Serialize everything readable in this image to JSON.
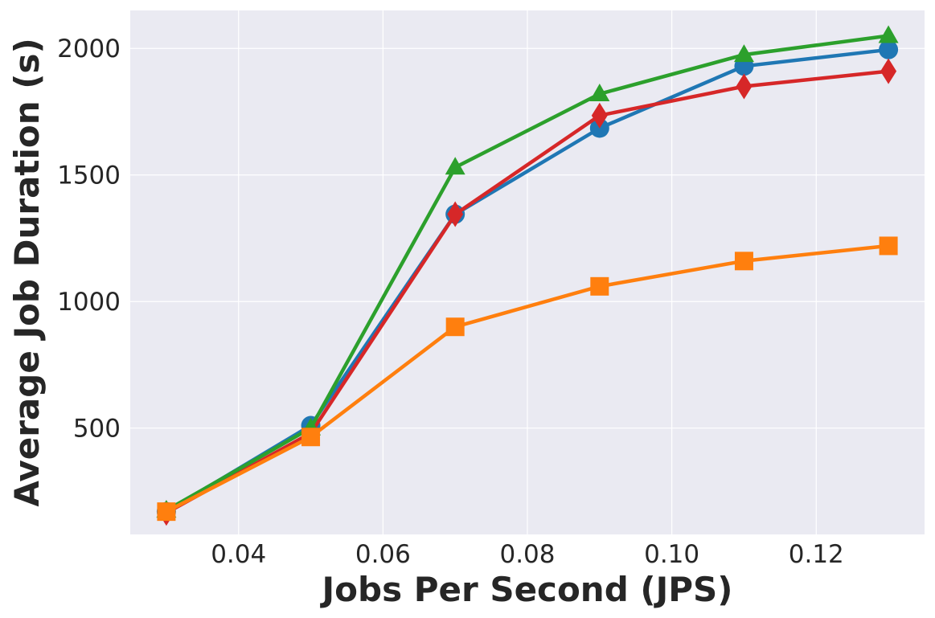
{
  "chart_data": {
    "type": "line",
    "title": "",
    "xlabel": "Jobs Per Second (JPS)",
    "ylabel": "Average Job Duration (s)",
    "xlim": [
      0.025,
      0.135
    ],
    "ylim": [
      80,
      2150
    ],
    "xticks": [
      0.04,
      0.06,
      0.08,
      0.1,
      0.12
    ],
    "xtick_labels": [
      "0.04",
      "0.06",
      "0.08",
      "0.10",
      "0.12"
    ],
    "yticks": [
      500,
      1000,
      1500,
      2000
    ],
    "ytick_labels": [
      "500",
      "1000",
      "1500",
      "2000"
    ],
    "grid": true,
    "legend": "none",
    "x": [
      0.03,
      0.05,
      0.07,
      0.09,
      0.11,
      0.13
    ],
    "series": [
      {
        "color": "#1f77b4",
        "marker": "circle",
        "values": [
          170,
          510,
          1345,
          1685,
          1930,
          1995
        ]
      },
      {
        "color": "#d62728",
        "marker": "diamond",
        "values": [
          165,
          480,
          1345,
          1735,
          1850,
          1910
        ]
      },
      {
        "color": "#2ca02c",
        "marker": "triangle",
        "values": [
          175,
          500,
          1530,
          1820,
          1975,
          2050
        ]
      },
      {
        "color": "#ff7f0e",
        "marker": "square",
        "values": [
          170,
          465,
          900,
          1060,
          1160,
          1220
        ]
      }
    ]
  }
}
